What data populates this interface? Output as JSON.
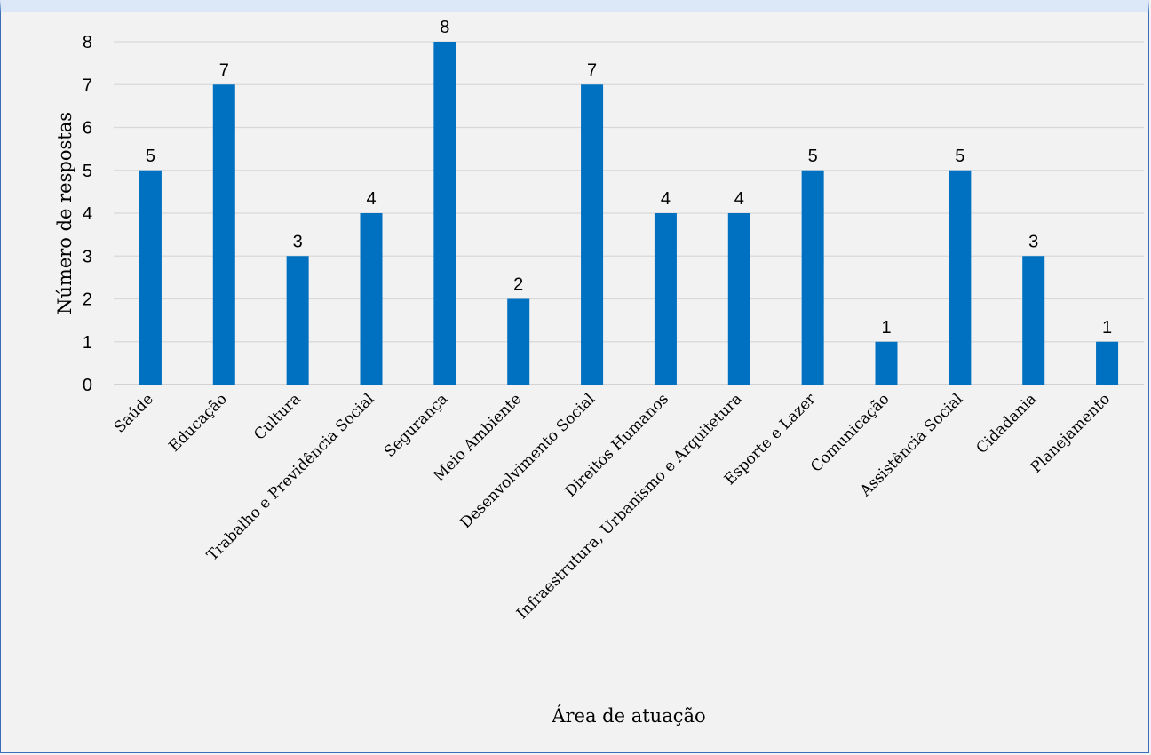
{
  "chart_data": {
    "type": "bar",
    "title": "",
    "xlabel": "Área de atuação",
    "ylabel": "Número de respostas",
    "ylim": [
      0,
      8
    ],
    "yticks": [
      0,
      1,
      2,
      3,
      4,
      5,
      6,
      7,
      8
    ],
    "grid": true,
    "legend": "none",
    "bar_color": "#0070c0",
    "categories": [
      "Saúde",
      "Educação",
      "Cultura",
      "Trabalho e Previdência Social",
      "Segurança",
      "Meio Ambiente",
      "Desenvolvimento Social",
      "Direitos Humanos",
      "Infraestrutura, Urbanismo e Arquitetura",
      "Esporte e Lazer",
      "Comunicação",
      "Assistência Social",
      "Cidadania",
      "Planejamento"
    ],
    "values": [
      5,
      7,
      3,
      4,
      8,
      2,
      7,
      4,
      4,
      5,
      1,
      5,
      3,
      1
    ]
  }
}
